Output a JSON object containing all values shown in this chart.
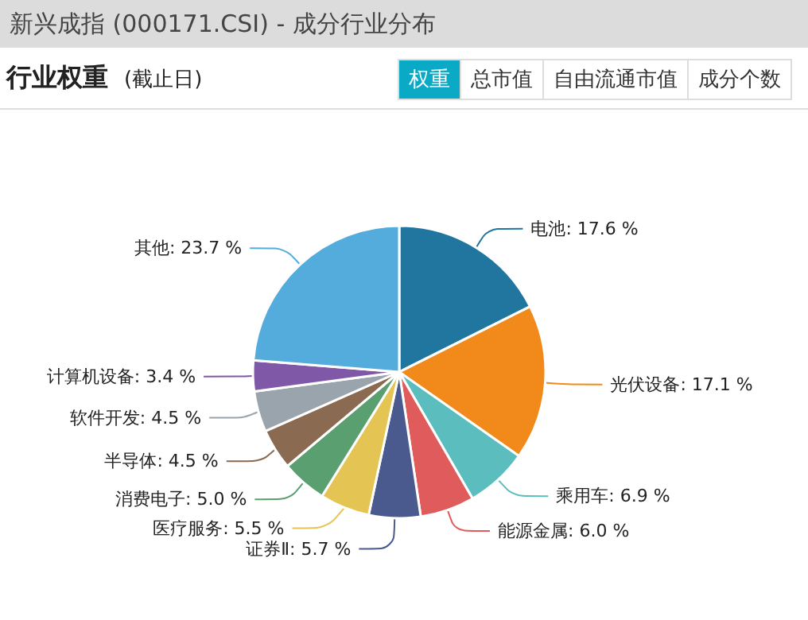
{
  "chart_data": {
    "type": "pie",
    "title": "新兴成指 (000171.CSI) - 成分行业分布",
    "subtitle": "行业权重 (截止日)",
    "annotations": [
      "权重",
      "总市值",
      "自由流通市值",
      "成分个数"
    ],
    "categories": [
      "电池",
      "光伏设备",
      "乘用车",
      "能源金属",
      "证券Ⅱ",
      "医疗服务",
      "消费电子",
      "半导体",
      "软件开发",
      "计算机设备",
      "其他"
    ],
    "values": [
      17.6,
      17.1,
      6.9,
      6.0,
      5.7,
      5.5,
      5.0,
      4.5,
      4.5,
      3.4,
      23.7
    ],
    "value_labels": [
      "17.6 %",
      "17.1 %",
      "6.9 %",
      "6.0 %",
      "5.7 %",
      "5.5 %",
      "5.0 %",
      "4.5 %",
      "4.5 %",
      "3.4 %",
      "23.7 %"
    ],
    "colors": [
      "#21769f",
      "#f28a1b",
      "#5bbdbd",
      "#e05c5c",
      "#4a5a8e",
      "#e4c452",
      "#5a9f70",
      "#8a6a50",
      "#9aa4ac",
      "#8058a8",
      "#53acdc"
    ],
    "legend": false
  }
}
